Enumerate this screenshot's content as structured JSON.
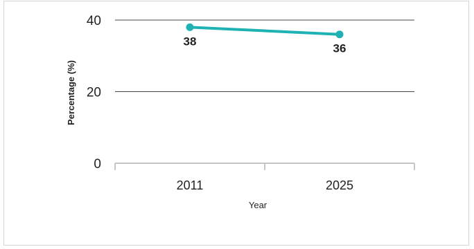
{
  "chart_data": {
    "type": "line",
    "x": [
      "2011",
      "2025"
    ],
    "series": [
      {
        "values": [
          38,
          36
        ],
        "color": "#1fb2b4"
      }
    ],
    "xlabel": "Year",
    "ylabel": "Percentage (%)",
    "ylim": [
      0,
      40
    ],
    "yticks": [
      0,
      20,
      40
    ],
    "grid": true,
    "data_labels": [
      "38",
      "36"
    ]
  }
}
